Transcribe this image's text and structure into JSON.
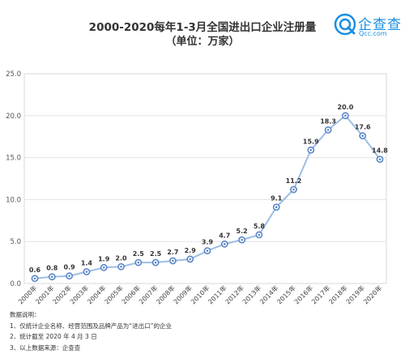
{
  "header": {
    "title": "2000-2020每年1-3月全国进出口企业注册量",
    "subtitle": "（单位：万家）"
  },
  "logo": {
    "name": "企查查",
    "domain": "Qcc.com",
    "brand_color": "#1a8fe3"
  },
  "chart_data": {
    "type": "line",
    "categories": [
      "2000年",
      "2001年",
      "2002年",
      "2003年",
      "2004年",
      "2005年",
      "2006年",
      "2007年",
      "2008年",
      "2009年",
      "2010年",
      "2011年",
      "2012年",
      "2013年",
      "2014年",
      "2015年",
      "2016年",
      "2017年",
      "2018年",
      "2019年",
      "2020年"
    ],
    "values": [
      0.6,
      0.8,
      0.9,
      1.4,
      1.9,
      2.0,
      2.5,
      2.5,
      2.7,
      2.9,
      3.9,
      4.7,
      5.2,
      5.8,
      9.1,
      11.2,
      15.9,
      18.3,
      20.0,
      17.6,
      14.8
    ],
    "labels": [
      "0.6",
      "0.8",
      "0.9",
      "1.4",
      "1.9",
      "2.0",
      "2.5",
      "2.5",
      "2.7",
      "2.9",
      "3.9",
      "4.7",
      "5.2",
      "5.8",
      "9.1",
      "11.2",
      "15.9",
      "18.3",
      "20.0",
      "17.6",
      "14.8"
    ],
    "yticks": [
      "0.0",
      "5.0",
      "10.0",
      "15.0",
      "20.0",
      "25.0"
    ],
    "ylim": [
      0,
      25
    ],
    "grid": true,
    "line_color": "#9dbde6",
    "marker_color": "#5a86c8"
  },
  "notes": {
    "heading": "数据说明：",
    "items": [
      "1、仅统计企业名称、经营范围及品牌产品为“进出口”的企业",
      "2、统计截至 2020 年 4 月 3 日",
      "3、以上数据来源：企查查"
    ]
  }
}
